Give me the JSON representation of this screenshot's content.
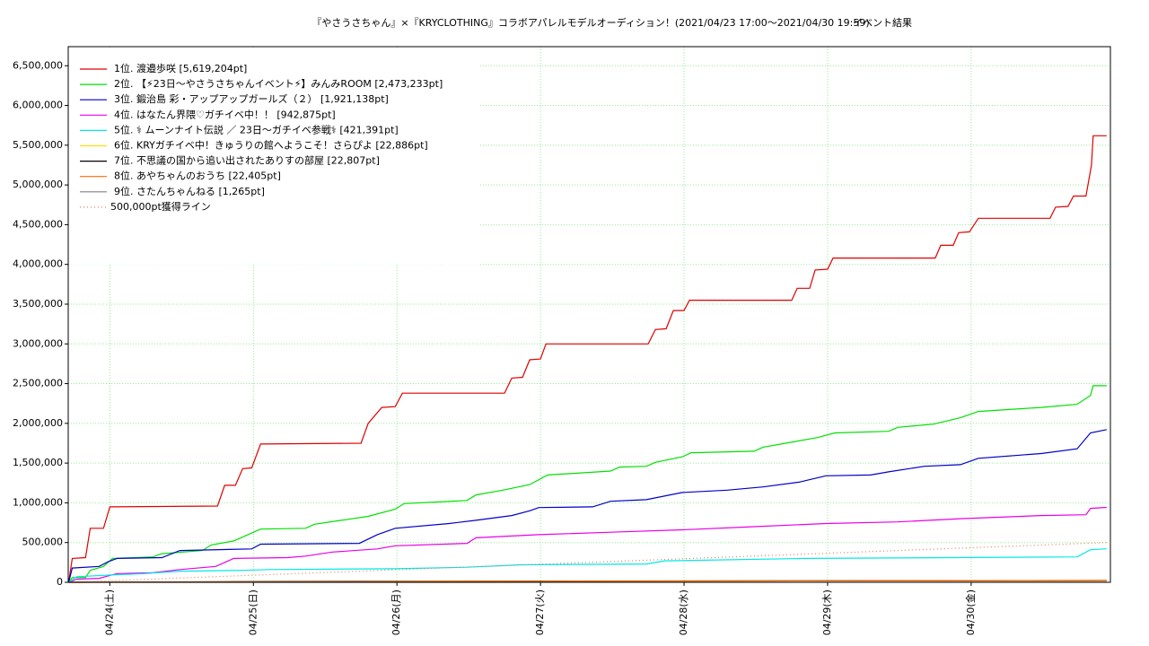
{
  "chart_data": {
    "type": "line",
    "title": "『やさうさちゃん』×『KRYCLOTHING』コラボアパレルモデルオーディション！(2021/04/23 17:00〜2021/04/30 19:59)",
    "subtitle": "イベント結果",
    "xlim": [
      23.71,
      30.97
    ],
    "xticks": [
      {
        "value": 24,
        "label": "04/24(土)"
      },
      {
        "value": 25,
        "label": "04/25(日)"
      },
      {
        "value": 26,
        "label": "04/26(月)"
      },
      {
        "value": 27,
        "label": "04/27(火)"
      },
      {
        "value": 28,
        "label": "04/28(水)"
      },
      {
        "value": 29,
        "label": "04/29(木)"
      },
      {
        "value": 30,
        "label": "04/30(金)"
      }
    ],
    "ylim": [
      0,
      6740000
    ],
    "yticks": [
      0,
      {
        "value": 500000,
        "label": "500,000"
      },
      {
        "value": 1000000,
        "label": "1,000,000"
      },
      {
        "value": 1500000,
        "label": "1,500,000"
      },
      {
        "value": 2000000,
        "label": "2,000,000"
      },
      {
        "value": 2500000,
        "label": "2,500,000"
      },
      {
        "value": 3000000,
        "label": "3,000,000"
      },
      {
        "value": 3500000,
        "label": "3,500,000"
      },
      {
        "value": 4000000,
        "label": "4,000,000"
      },
      {
        "value": 4500000,
        "label": "4,500,000"
      },
      {
        "value": 5000000,
        "label": "5,000,000"
      },
      {
        "value": 5500000,
        "label": "5,500,000"
      },
      {
        "value": 6000000,
        "label": "6,000,000"
      },
      {
        "value": 6500000,
        "label": "6,500,000"
      }
    ],
    "grid": true,
    "legend": "upper-left",
    "series": [
      {
        "name": "1位. 渡邉歩咲 [5,619,204pt]",
        "color": "#e00000",
        "x": [
          23.713,
          23.738,
          23.831,
          23.863,
          23.956,
          24.0,
          24.75,
          24.8,
          24.875,
          24.925,
          24.988,
          25.05,
          25.75,
          25.8,
          25.894,
          25.988,
          26.038,
          26.75,
          26.8,
          26.875,
          26.925,
          27.0,
          27.038,
          27.75,
          27.8,
          27.875,
          27.925,
          28.0,
          28.038,
          28.75,
          28.788,
          28.875,
          28.913,
          29.0,
          29.038,
          29.75,
          29.788,
          29.875,
          29.913,
          29.988,
          30.05,
          30.55,
          30.588,
          30.675,
          30.713,
          30.8,
          30.838,
          30.85,
          30.944
        ],
        "values": [
          0,
          300000,
          310000,
          680000,
          680000,
          950000,
          960000,
          1220000,
          1220000,
          1430000,
          1440000,
          1740000,
          1750000,
          2000000,
          2200000,
          2210000,
          2380000,
          2380000,
          2570000,
          2580000,
          2800000,
          2810000,
          3000000,
          3000000,
          3180000,
          3190000,
          3420000,
          3420000,
          3550000,
          3550000,
          3700000,
          3700000,
          3930000,
          3940000,
          4080000,
          4080000,
          4240000,
          4240000,
          4400000,
          4410000,
          4580000,
          4580000,
          4720000,
          4730000,
          4860000,
          4860000,
          5250000,
          5619204,
          5619204
        ]
      },
      {
        "name": "2位. 【⚡23日〜やさうさちゃんイベント⚡】みんみROOM [2,473,233pt]",
        "color": "#00e000",
        "x": [
          23.713,
          23.738,
          23.831,
          23.863,
          23.956,
          24.019,
          24.3,
          24.363,
          24.644,
          24.706,
          24.863,
          25.05,
          25.363,
          25.425,
          25.613,
          25.8,
          25.988,
          26.05,
          26.488,
          26.55,
          26.738,
          26.925,
          27.05,
          27.488,
          27.55,
          27.738,
          27.8,
          27.988,
          28.05,
          28.488,
          28.55,
          28.738,
          28.925,
          29.05,
          29.425,
          29.488,
          29.738,
          29.925,
          30.05,
          30.488,
          30.738,
          30.831,
          30.85,
          30.944
        ],
        "values": [
          0,
          60000,
          60000,
          150000,
          200000,
          300000,
          320000,
          360000,
          400000,
          470000,
          520000,
          670000,
          680000,
          730000,
          780000,
          830000,
          920000,
          990000,
          1030000,
          1100000,
          1160000,
          1230000,
          1350000,
          1400000,
          1450000,
          1460000,
          1510000,
          1580000,
          1630000,
          1650000,
          1700000,
          1760000,
          1820000,
          1880000,
          1900000,
          1950000,
          1990000,
          2070000,
          2150000,
          2200000,
          2240000,
          2350000,
          2473233,
          2473233
        ]
      },
      {
        "name": "3位. 鍛治島 彩・アップアップガールズ（２） [1,921,138pt]",
        "color": "#0000c8",
        "x": [
          23.713,
          23.738,
          23.925,
          23.988,
          24.05,
          24.363,
          24.488,
          24.988,
          25.05,
          25.738,
          25.863,
          25.988,
          26.363,
          26.55,
          26.8,
          26.925,
          26.988,
          27.363,
          27.488,
          27.738,
          27.988,
          28.3,
          28.55,
          28.8,
          28.988,
          29.3,
          29.425,
          29.675,
          29.925,
          30.05,
          30.488,
          30.738,
          30.831,
          30.944
        ],
        "values": [
          0,
          180000,
          200000,
          260000,
          300000,
          310000,
          400000,
          420000,
          480000,
          490000,
          600000,
          680000,
          740000,
          780000,
          840000,
          900000,
          940000,
          950000,
          1020000,
          1040000,
          1130000,
          1160000,
          1200000,
          1260000,
          1340000,
          1350000,
          1390000,
          1460000,
          1480000,
          1560000,
          1620000,
          1680000,
          1880000,
          1921138
        ]
      },
      {
        "name": "4位. はなたん界隈♡ガチイベ中！！ [942,875pt]",
        "color": "#e800e8",
        "x": [
          23.713,
          23.769,
          23.925,
          24.05,
          24.3,
          24.488,
          24.738,
          24.863,
          25.238,
          25.363,
          25.55,
          25.863,
          25.988,
          26.488,
          26.55,
          26.988,
          27.488,
          27.988,
          28.488,
          28.988,
          29.488,
          29.925,
          30.488,
          30.8,
          30.831,
          30.944
        ],
        "values": [
          0,
          40000,
          50000,
          110000,
          120000,
          160000,
          200000,
          300000,
          310000,
          330000,
          380000,
          420000,
          460000,
          490000,
          560000,
          600000,
          630000,
          660000,
          700000,
          740000,
          760000,
          800000,
          840000,
          850000,
          930000,
          942875
        ]
      },
      {
        "name": "5位. ⚕ ムーンナイト伝説 ／ 23日〜ガチイベ参戦⚕ [421,391pt]",
        "color": "#00e8e8",
        "x": [
          23.713,
          23.769,
          23.988,
          24.238,
          24.488,
          24.925,
          25.113,
          25.988,
          26.488,
          26.863,
          27.738,
          27.863,
          28.863,
          29.863,
          30.738,
          30.831,
          30.944
        ],
        "values": [
          0,
          70000,
          90000,
          110000,
          140000,
          150000,
          160000,
          170000,
          190000,
          220000,
          230000,
          270000,
          300000,
          310000,
          320000,
          410000,
          421391
        ]
      },
      {
        "name": "6位. KRYガチイベ中！きゅうりの館へようこそ！さらぴよ [22,886pt]",
        "color": "#ffe000",
        "x": [
          23.713,
          25.738,
          26.988,
          30.944
        ],
        "values": [
          0,
          10000,
          15000,
          22886
        ]
      },
      {
        "name": "7位. 不思議の国から追い出されたありすの部屋 [22,807pt]",
        "color": "#000000",
        "x": [
          23.713,
          25.3,
          26.988,
          30.944
        ],
        "values": [
          0,
          10000,
          15000,
          22807
        ]
      },
      {
        "name": "8位. あやちゃんのおうち [22,405pt]",
        "color": "#ff6a00",
        "x": [
          23.713,
          25.738,
          26.988,
          30.944
        ],
        "values": [
          0,
          8000,
          14000,
          22405
        ]
      },
      {
        "name": "9位. さたんちゃんねる [1,265pt]",
        "color": "#808080",
        "x": [
          23.713,
          30.944
        ],
        "values": [
          0,
          1265
        ]
      },
      {
        "name": "500,000pt獲得ライン",
        "color": "#e08060",
        "dash": "dotted",
        "x": [
          23.713,
          30.944
        ],
        "values": [
          0,
          500000
        ]
      }
    ]
  }
}
